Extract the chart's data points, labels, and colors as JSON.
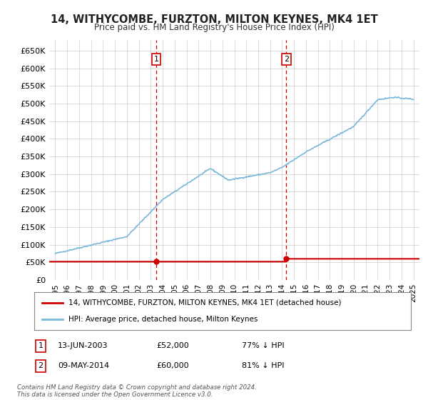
{
  "title": "14, WITHYCOMBE, FURZTON, MILTON KEYNES, MK4 1ET",
  "subtitle": "Price paid vs. HM Land Registry's House Price Index (HPI)",
  "legend_line1": "14, WITHYCOMBE, FURZTON, MILTON KEYNES, MK4 1ET (detached house)",
  "legend_line2": "HPI: Average price, detached house, Milton Keynes",
  "footnote": "Contains HM Land Registry data © Crown copyright and database right 2024.\nThis data is licensed under the Open Government Licence v3.0.",
  "transactions": [
    {
      "date": 2003.45,
      "price": 52000,
      "label": "1",
      "pct": "77% ↓ HPI",
      "display_date": "13-JUN-2003"
    },
    {
      "date": 2014.36,
      "price": 60000,
      "label": "2",
      "pct": "81% ↓ HPI",
      "display_date": "09-MAY-2014"
    }
  ],
  "hpi_color": "#7ab8d9",
  "transaction_color": "#cc0000",
  "plot_bg": "#ffffff",
  "grid_color": "#cccccc",
  "ylim": [
    0,
    680000
  ],
  "yticks": [
    0,
    50000,
    100000,
    150000,
    200000,
    250000,
    300000,
    350000,
    400000,
    450000,
    500000,
    550000,
    600000,
    650000
  ],
  "xlim": [
    1994.5,
    2025.5
  ],
  "xticks": [
    1995,
    1996,
    1997,
    1998,
    1999,
    2000,
    2001,
    2002,
    2003,
    2004,
    2005,
    2006,
    2007,
    2008,
    2009,
    2010,
    2011,
    2012,
    2013,
    2014,
    2015,
    2016,
    2017,
    2018,
    2019,
    2020,
    2021,
    2022,
    2023,
    2024,
    2025
  ]
}
